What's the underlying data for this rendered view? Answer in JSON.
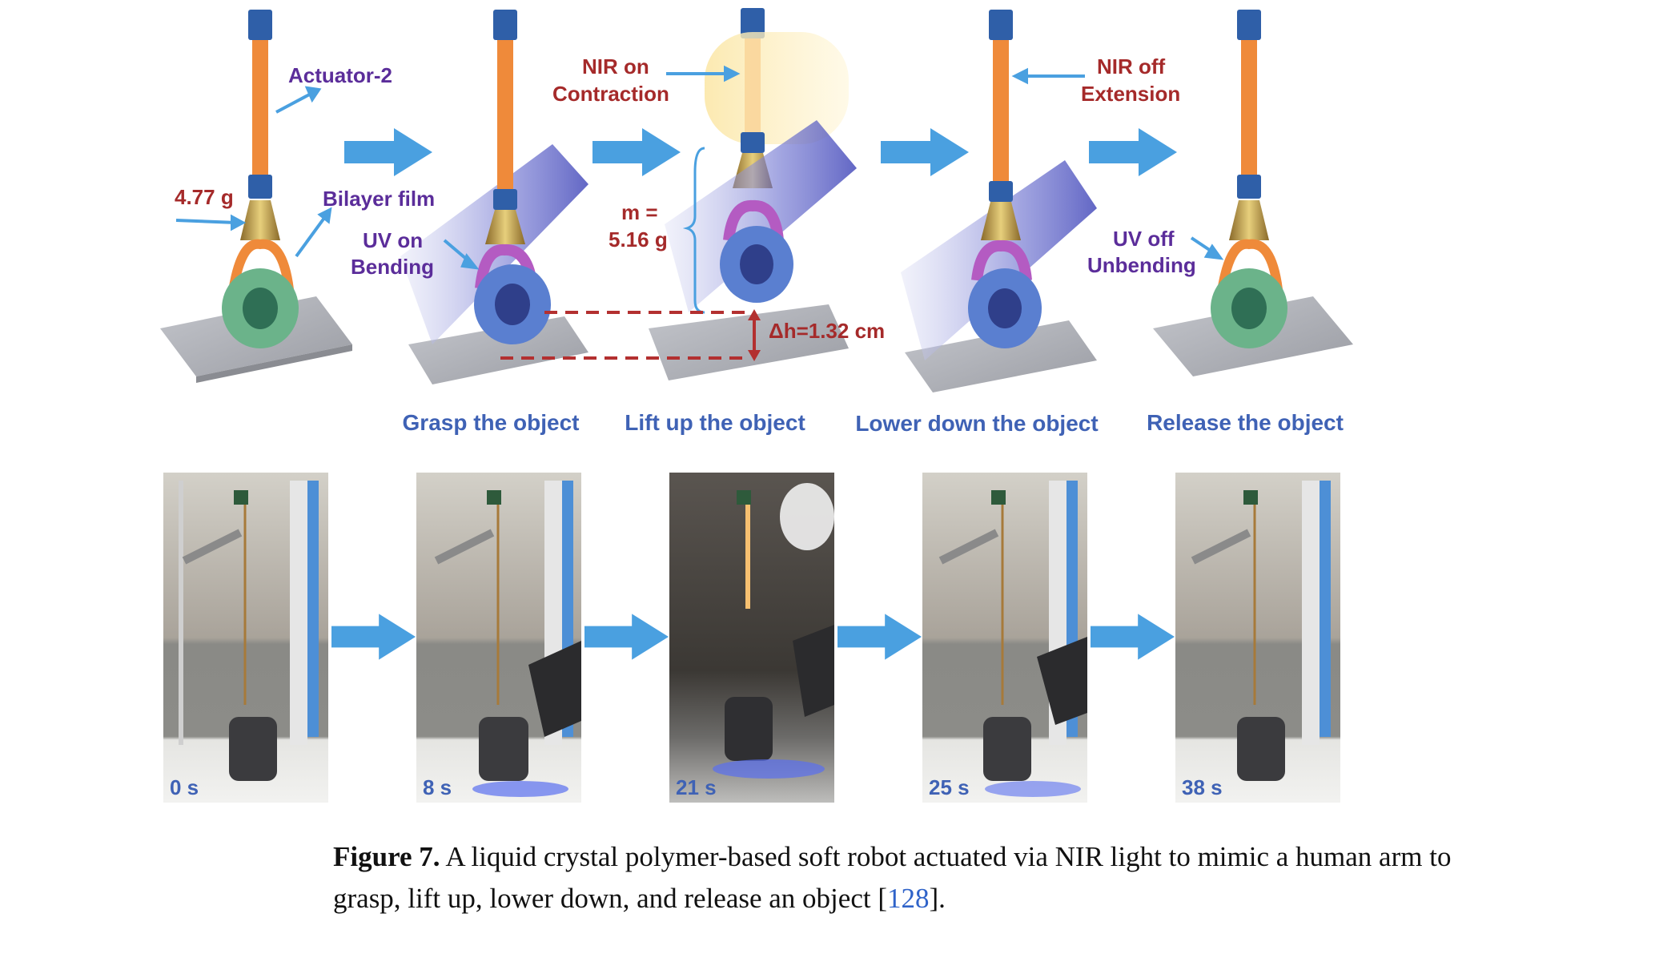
{
  "figure": {
    "top_panels": [
      {
        "step_label": ""
      },
      {
        "step_label": "Grasp the object"
      },
      {
        "step_label": "Lift up the object"
      },
      {
        "step_label": "Lower down the object"
      },
      {
        "step_label": "Release the object"
      }
    ],
    "annotations": {
      "actuator": "Actuator-2",
      "mass_initial": "4.77 g",
      "bilayer": "Bilayer film",
      "uv_on_1": "UV on",
      "uv_on_2": "Bending",
      "nir_on_1": "NIR on",
      "nir_on_2": "Contraction",
      "m_1": "m =",
      "m_2": "5.16 g",
      "delta_h": "Δh=1.32 cm",
      "nir_off_1": "NIR off",
      "nir_off_2": "Extension",
      "uv_off_1": "UV off",
      "uv_off_2": "Unbending"
    },
    "photo_timestamps": [
      "0 s",
      "8 s",
      "21 s",
      "25 s",
      "38 s"
    ],
    "colors": {
      "arrow_blue": "#4aa0e0",
      "annotation_red": "#a52a2a",
      "annotation_purple": "#5b2d9a",
      "step_label_blue": "#3f62b5",
      "actuator_orange": "#ef8a3a",
      "ring_green": "#6bb38a",
      "clamp_blue": "#2f5fa8"
    }
  },
  "caption": {
    "label": "Figure 7.",
    "text_line1": " A liquid crystal polymer-based soft robot actuated via NIR light to mimic a human arm to",
    "text_line2_pre": "grasp, lift up, lower down, and release an object [",
    "ref": "128",
    "text_line2_post": "]."
  }
}
